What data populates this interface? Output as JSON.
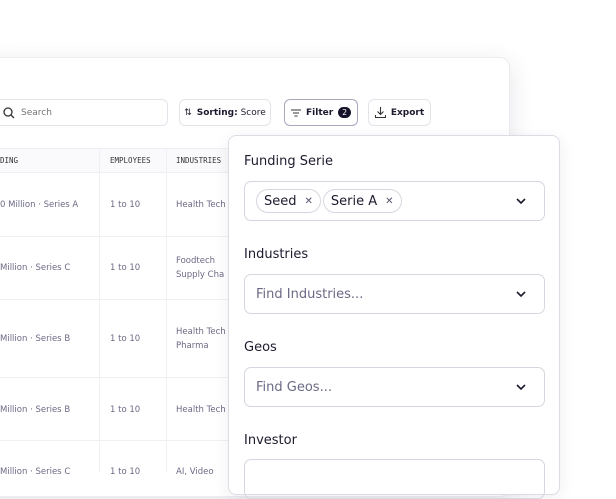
{
  "toolbar": {
    "search_placeholder": "Search",
    "sorting_label": "Sorting:",
    "sorting_value": "Score",
    "filter_label": "Filter",
    "filter_count": "2",
    "export_label": "Export"
  },
  "table": {
    "columns": [
      "DING",
      "EMPLOYEES",
      "INDUSTRIES"
    ],
    "rows": [
      {
        "funding": "0 Million · Series A",
        "employees": "1 to 10",
        "industries": [
          "Health Tech"
        ]
      },
      {
        "funding": "Million · Series C",
        "employees": "1 to 10",
        "industries": [
          "Foodtech",
          "Supply Cha"
        ]
      },
      {
        "funding": "Million · Series B",
        "employees": "1 to 10",
        "industries": [
          "Health Tech",
          "Pharma"
        ]
      },
      {
        "funding": "Million · Series B",
        "employees": "1 to 10",
        "industries": [
          "Health Tech"
        ]
      },
      {
        "funding": "Million · Series C",
        "employees": "1 to 10",
        "industries": [
          "AI, Video"
        ]
      }
    ]
  },
  "filter_panel": {
    "funding": {
      "label": "Funding Serie",
      "chips": [
        "Seed",
        "Serie A"
      ]
    },
    "industries": {
      "label": "Industries",
      "placeholder": "Find Industries..."
    },
    "geos": {
      "label": "Geos",
      "placeholder": "Find Geos..."
    },
    "investor": {
      "label": "Investor"
    }
  }
}
